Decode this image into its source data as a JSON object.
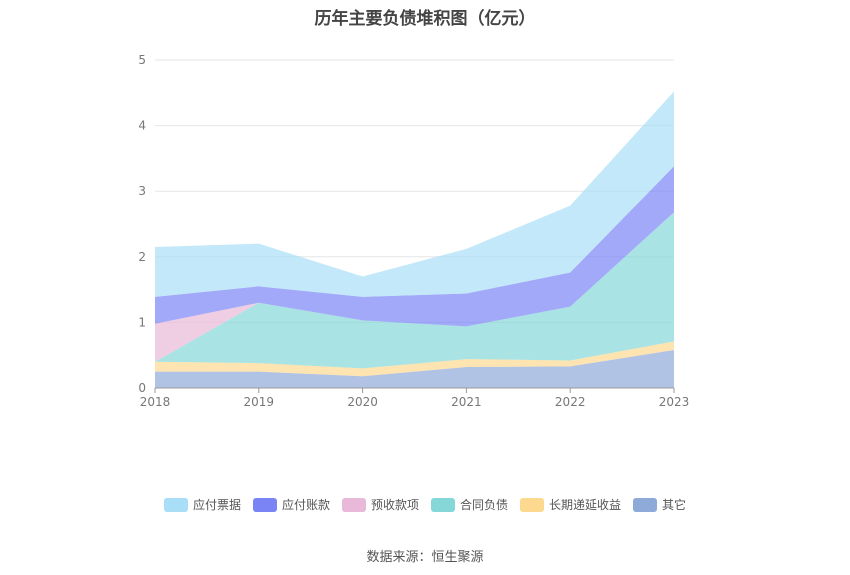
{
  "chart_data": {
    "type": "area",
    "title": "历年主要负债堆积图（亿元）",
    "x": [
      "2018",
      "2019",
      "2020",
      "2021",
      "2022",
      "2023"
    ],
    "ylim": [
      0,
      5
    ],
    "yticks": [
      "0",
      "1",
      "2",
      "3",
      "4",
      "5"
    ],
    "stacked": true,
    "grid": true,
    "legend_position": "bottom",
    "series": [
      {
        "name": "其它",
        "color": "#8eaad8",
        "values": [
          0.25,
          0.25,
          0.18,
          0.32,
          0.33,
          0.58
        ]
      },
      {
        "name": "长期递延收益",
        "color": "#fcd98f",
        "values": [
          0.15,
          0.13,
          0.12,
          0.12,
          0.09,
          0.13
        ]
      },
      {
        "name": "合同负债",
        "color": "#86d7d7",
        "values": [
          0.0,
          0.92,
          0.73,
          0.5,
          0.82,
          1.97
        ]
      },
      {
        "name": "预收款项",
        "color": "#e8b9d8",
        "values": [
          0.58,
          0.0,
          0.0,
          0.0,
          0.0,
          0.0
        ]
      },
      {
        "name": "应付账款",
        "color": "#7b84f5",
        "values": [
          0.41,
          0.25,
          0.36,
          0.5,
          0.52,
          0.7
        ]
      },
      {
        "name": "应付票据",
        "color": "#a8def7",
        "values": [
          0.76,
          0.65,
          0.31,
          0.68,
          1.02,
          1.14
        ]
      }
    ]
  },
  "legend_order": [
    "应付票据",
    "应付账款",
    "预收款项",
    "合同负债",
    "长期递延收益",
    "其它"
  ],
  "source_text": "数据来源：恒生聚源"
}
